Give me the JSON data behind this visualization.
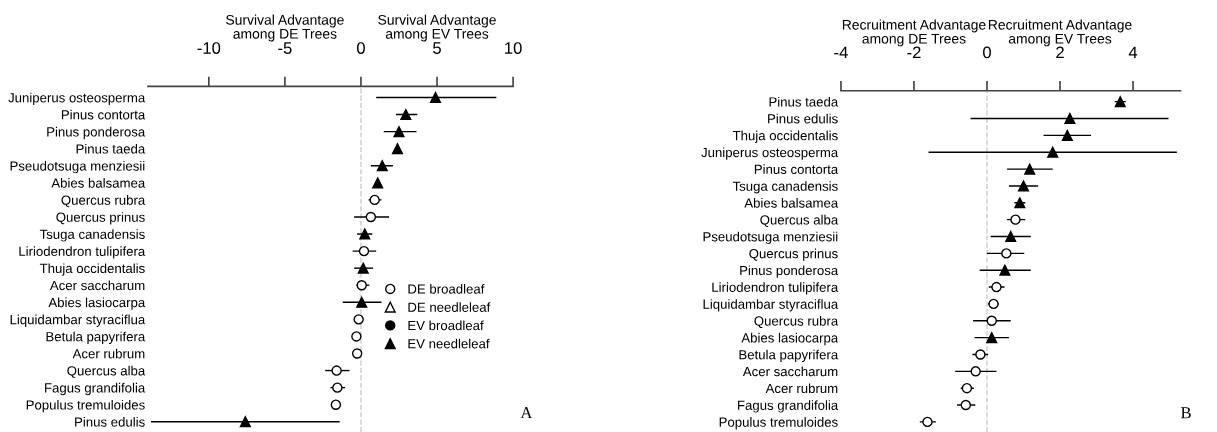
{
  "chart_data": [
    {
      "type": "scatter",
      "orientation": "horizontal",
      "legend": "bottom right",
      "grid": false,
      "categories": [
        "Juniperus osteosperma",
        "Pinus contorta",
        "Pinus ponderosa",
        "Pinus taeda",
        "Pseudotsuga menziesii",
        "Abies balsamea",
        "Quercus rubra",
        "Quercus prinus",
        "Tsuga canadensis",
        "Liriodendron tulipifera",
        "Thuja occidentalis",
        "Acer saccharum",
        "Abies lasiocarpa",
        "Liquidambar styraciflua",
        "Betula papyrifera",
        "Acer rubrum",
        "Quercus alba",
        "Fagus grandifolia",
        "Populus tremuloides",
        "Pinus edulis"
      ],
      "xlim": [
        -14,
        10
      ],
      "xticks": [
        -10,
        -5,
        0,
        5,
        10
      ],
      "annotations": [
        "Survival Advantage\namong DE Trees",
        "Survival Advantage\namong EV Trees",
        "A"
      ],
      "ref_lines": [
        {
          "axis": "x",
          "value": 0,
          "color": "#cccccc",
          "line_style": "dashed"
        }
      ],
      "series": [
        {
          "name": "DE broadleaf",
          "color": "#000000",
          "marker": "circle-open",
          "values": [
            null,
            null,
            null,
            null,
            null,
            null,
            0.9,
            0.65,
            null,
            0.2,
            null,
            0.05,
            null,
            -0.15,
            -0.3,
            -0.25,
            -1.6,
            -1.55,
            -1.65,
            null
          ],
          "errors": [
            null,
            null,
            null,
            null,
            null,
            null,
            [
              0.5,
              1.35
            ],
            [
              -0.45,
              1.85
            ],
            null,
            [
              -0.55,
              1.0
            ],
            null,
            [
              -0.3,
              0.55
            ],
            null,
            null,
            null,
            null,
            [
              -2.35,
              -0.75
            ],
            [
              -2.0,
              -1.05
            ],
            null,
            null
          ]
        },
        {
          "name": "DE needleleaf",
          "color": "#000000",
          "marker": "triangle-open",
          "values": [
            null,
            null,
            null,
            null,
            null,
            null,
            null,
            null,
            null,
            null,
            null,
            null,
            null,
            null,
            null,
            null,
            null,
            null,
            null,
            null
          ]
        },
        {
          "name": "EV broadleaf",
          "color": "#000000",
          "marker": "circle",
          "values": [
            null,
            null,
            null,
            null,
            null,
            null,
            null,
            null,
            null,
            null,
            null,
            null,
            null,
            null,
            null,
            null,
            null,
            null,
            null,
            null
          ]
        },
        {
          "name": "EV needleleaf",
          "color": "#000000",
          "marker": "triangle",
          "values": [
            4.9,
            2.95,
            2.5,
            2.4,
            1.4,
            1.1,
            null,
            null,
            0.25,
            null,
            0.15,
            null,
            0.05,
            null,
            null,
            null,
            null,
            null,
            null,
            -7.6
          ],
          "errors": [
            [
              1.0,
              8.9
            ],
            [
              2.3,
              3.7
            ],
            [
              1.5,
              3.65
            ],
            null,
            [
              0.65,
              2.1
            ],
            null,
            null,
            null,
            [
              -0.25,
              0.75
            ],
            null,
            [
              -0.45,
              0.8
            ],
            null,
            [
              -1.2,
              1.35
            ],
            null,
            null,
            null,
            null,
            null,
            null,
            [
              -13.8,
              -1.4
            ]
          ]
        }
      ]
    },
    {
      "type": "scatter",
      "orientation": "horizontal",
      "grid": false,
      "categories": [
        "Pinus taeda",
        "Pinus edulis",
        "Thuja occidentalis",
        "Juniperus osteosperma",
        "Pinus contorta",
        "Tsuga canadensis",
        "Abies balsamea",
        "Quercus alba",
        "Pseudotsuga menziesii",
        "Quercus prinus",
        "Pinus ponderosa",
        "Liriodendron tulipifera",
        "Liquidambar styraciflua",
        "Quercus rubra",
        "Abies lasiocarpa",
        "Betula papyrifera",
        "Acer saccharum",
        "Acer rubrum",
        "Fagus grandifolia",
        "Populus tremuloides"
      ],
      "xlim": [
        -4,
        5.3
      ],
      "xticks": [
        -4,
        -2,
        0,
        2,
        4
      ],
      "annotations": [
        "Recruitment Advantage\namong DE Trees",
        "Recruitment Advantage\namong EV Trees",
        "B"
      ],
      "ref_lines": [
        {
          "axis": "x",
          "value": 0,
          "color": "#cccccc",
          "line_style": "dashed"
        }
      ],
      "series": [
        {
          "color": "#000000",
          "marker": "circle-open",
          "values": [
            null,
            null,
            null,
            null,
            null,
            null,
            null,
            0.78,
            null,
            0.53,
            null,
            0.26,
            0.18,
            0.13,
            null,
            -0.18,
            -0.31,
            -0.55,
            -0.58,
            -1.63
          ],
          "errors": [
            null,
            null,
            null,
            null,
            null,
            null,
            null,
            [
              0.55,
              1.05
            ],
            null,
            [
              0.0,
              1.02
            ],
            null,
            [
              0.05,
              0.48
            ],
            [
              0.03,
              0.33
            ],
            [
              -0.38,
              0.65
            ],
            null,
            [
              -0.4,
              0.03
            ],
            [
              -0.87,
              0.26
            ],
            [
              -0.72,
              -0.36
            ],
            [
              -0.82,
              -0.32
            ],
            [
              -1.84,
              -1.4
            ]
          ]
        },
        {
          "color": "#000000",
          "marker": "triangle",
          "values": [
            3.65,
            2.27,
            2.2,
            1.8,
            1.17,
            1.0,
            0.9,
            null,
            0.65,
            null,
            0.49,
            null,
            null,
            null,
            0.13,
            null,
            null,
            null,
            null,
            null
          ],
          "errors": [
            [
              3.5,
              3.8
            ],
            [
              -0.45,
              4.97
            ],
            [
              1.55,
              2.85
            ],
            [
              -1.6,
              5.2
            ],
            [
              0.55,
              1.8
            ],
            [
              0.6,
              1.4
            ],
            [
              0.75,
              1.05
            ],
            null,
            [
              0.1,
              1.2
            ],
            null,
            [
              -0.2,
              1.2
            ],
            null,
            null,
            null,
            [
              -0.34,
              0.6
            ],
            null,
            null,
            null,
            null,
            null
          ]
        }
      ]
    }
  ]
}
